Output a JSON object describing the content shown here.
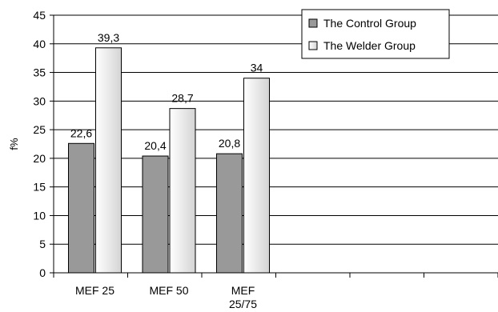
{
  "chart_data": {
    "type": "bar",
    "title": "",
    "xlabel": "",
    "ylabel": "f%",
    "ylim": [
      0,
      45
    ],
    "yticks": [
      0,
      5,
      10,
      15,
      20,
      25,
      30,
      35,
      40,
      45
    ],
    "categories": [
      "MEF 25",
      "MEF 50",
      "MEF\n25/75"
    ],
    "empty_trailing_categories": 3,
    "grid": true,
    "legend_position": "top-right",
    "series": [
      {
        "name": "The Control Group",
        "values": [
          22.6,
          20.4,
          20.8
        ],
        "labels": [
          "22,6",
          "20,4",
          "20,8"
        ],
        "color": "#999999"
      },
      {
        "name": "The Welder Group",
        "values": [
          39.3,
          28.7,
          34
        ],
        "labels": [
          "39,3",
          "28,7",
          "34"
        ],
        "color": "#eeeeee"
      }
    ]
  }
}
